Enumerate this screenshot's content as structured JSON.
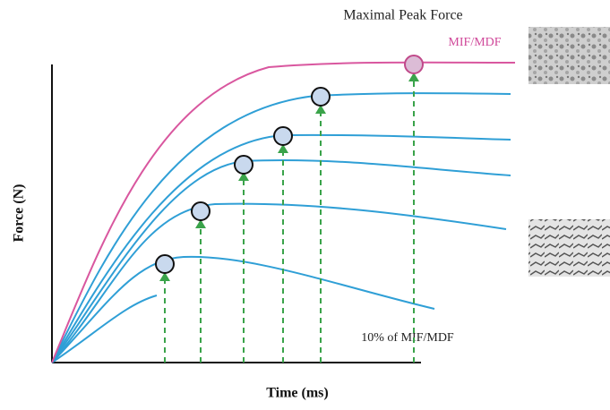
{
  "title": "Maximal Peak Force",
  "curve_labels": {
    "top": "MIF/MDF",
    "bottom": "10% of MIF/MDF"
  },
  "axes": {
    "y_label": "Force (N)",
    "x_label": "Time (ms)"
  }
}
